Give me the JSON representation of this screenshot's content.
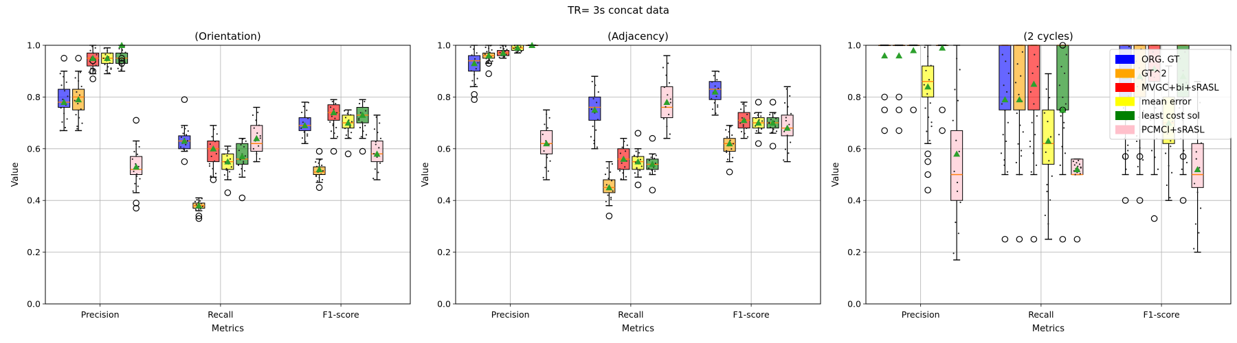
{
  "suptitle": "TR= 3s concat data",
  "legend": [
    {
      "label": "ORG. GT",
      "color": "#0000ff"
    },
    {
      "label": "GT^2",
      "color": "#ffa500"
    },
    {
      "label": "MVGC+bi+sRASL",
      "color": "#ff0000"
    },
    {
      "label": "mean error",
      "color": "#ffff00"
    },
    {
      "label": "least cost sol",
      "color": "#008000"
    },
    {
      "label": "PCMCI+sRASL",
      "color": "#ffc0cb"
    }
  ],
  "chart_data": [
    {
      "type": "box",
      "title": "(Orientation)",
      "xlabel": "Metrics",
      "ylabel": "Value",
      "categories": [
        "Precision",
        "Recall",
        "F1-score"
      ],
      "ylim": [
        0,
        1.0
      ],
      "yticks": [
        "0.0",
        "0.2",
        "0.4",
        "0.6",
        "0.8",
        "1.0"
      ],
      "grid": true,
      "series": [
        {
          "name": "ORG. GT",
          "boxes": [
            {
              "whislo": 0.67,
              "q1": 0.76,
              "med": 0.78,
              "q3": 0.83,
              "whishi": 0.9,
              "mean": 0.78,
              "fliers": [
                0.95
              ]
            },
            {
              "whislo": 0.59,
              "q1": 0.6,
              "med": 0.63,
              "q3": 0.65,
              "whishi": 0.69,
              "mean": 0.63,
              "fliers": [
                0.55,
                0.79
              ]
            },
            {
              "whislo": 0.62,
              "q1": 0.67,
              "med": 0.69,
              "q3": 0.72,
              "whishi": 0.78,
              "mean": 0.69,
              "fliers": []
            }
          ]
        },
        {
          "name": "GT^2",
          "boxes": [
            {
              "whislo": 0.67,
              "q1": 0.75,
              "med": 0.8,
              "q3": 0.83,
              "whishi": 0.9,
              "mean": 0.79,
              "fliers": [
                0.95
              ]
            },
            {
              "whislo": 0.36,
              "q1": 0.37,
              "med": 0.38,
              "q3": 0.39,
              "whishi": 0.41,
              "mean": 0.38,
              "fliers": [
                0.33,
                0.34
              ]
            },
            {
              "whislo": 0.47,
              "q1": 0.5,
              "med": 0.51,
              "q3": 0.53,
              "whishi": 0.56,
              "mean": 0.52,
              "fliers": [
                0.45,
                0.59
              ]
            }
          ]
        },
        {
          "name": "MVGC+bi+sRASL",
          "boxes": [
            {
              "whislo": 0.89,
              "q1": 0.92,
              "med": 0.95,
              "q3": 0.97,
              "whishi": 1.0,
              "mean": 0.95,
              "fliers": [
                0.87,
                0.9,
                0.94
              ]
            },
            {
              "whislo": 0.49,
              "q1": 0.55,
              "med": 0.6,
              "q3": 0.63,
              "whishi": 0.69,
              "mean": 0.6,
              "fliers": [
                0.48
              ]
            },
            {
              "whislo": 0.64,
              "q1": 0.71,
              "med": 0.74,
              "q3": 0.77,
              "whishi": 0.79,
              "mean": 0.74,
              "fliers": [
                0.59
              ]
            }
          ]
        },
        {
          "name": "mean error",
          "boxes": [
            {
              "whislo": 0.89,
              "q1": 0.93,
              "med": 0.95,
              "q3": 0.97,
              "whishi": 0.99,
              "mean": 0.95,
              "fliers": []
            },
            {
              "whislo": 0.48,
              "q1": 0.52,
              "med": 0.55,
              "q3": 0.58,
              "whishi": 0.61,
              "mean": 0.55,
              "fliers": [
                0.43
              ]
            },
            {
              "whislo": 0.64,
              "q1": 0.68,
              "med": 0.7,
              "q3": 0.73,
              "whishi": 0.75,
              "mean": 0.7,
              "fliers": [
                0.58
              ]
            }
          ]
        },
        {
          "name": "least cost sol",
          "boxes": [
            {
              "whislo": 0.9,
              "q1": 0.93,
              "med": 0.95,
              "q3": 0.97,
              "whishi": 1.0,
              "mean": 1.0,
              "fliers": [
                0.93,
                0.94,
                0.95
              ]
            },
            {
              "whislo": 0.49,
              "q1": 0.54,
              "med": 0.56,
              "q3": 0.62,
              "whishi": 0.64,
              "mean": 0.57,
              "fliers": [
                0.41
              ]
            },
            {
              "whislo": 0.64,
              "q1": 0.7,
              "med": 0.73,
              "q3": 0.76,
              "whishi": 0.79,
              "mean": 0.73,
              "fliers": [
                0.59
              ]
            }
          ]
        },
        {
          "name": "PCMCI+sRASL",
          "boxes": [
            {
              "whislo": 0.43,
              "q1": 0.5,
              "med": 0.52,
              "q3": 0.57,
              "whishi": 0.63,
              "mean": 0.53,
              "fliers": [
                0.37,
                0.39,
                0.71
              ]
            },
            {
              "whislo": 0.55,
              "q1": 0.59,
              "med": 0.62,
              "q3": 0.69,
              "whishi": 0.76,
              "mean": 0.64,
              "fliers": []
            },
            {
              "whislo": 0.48,
              "q1": 0.55,
              "med": 0.58,
              "q3": 0.63,
              "whishi": 0.73,
              "mean": 0.58,
              "fliers": []
            }
          ]
        }
      ]
    },
    {
      "type": "box",
      "title": "(Adjacency)",
      "xlabel": "Metrics",
      "ylabel": "Value",
      "categories": [
        "Precision",
        "Recall",
        "F1-score"
      ],
      "ylim": [
        0,
        1.0
      ],
      "yticks": [
        "0.0",
        "0.2",
        "0.4",
        "0.6",
        "0.8",
        "1.0"
      ],
      "grid": true,
      "series": [
        {
          "name": "ORG. GT",
          "boxes": [
            {
              "whislo": 0.84,
              "q1": 0.9,
              "med": 0.94,
              "q3": 0.96,
              "whishi": 1.0,
              "mean": 0.93,
              "fliers": [
                0.79,
                0.81
              ]
            },
            {
              "whislo": 0.6,
              "q1": 0.71,
              "med": 0.76,
              "q3": 0.8,
              "whishi": 0.88,
              "mean": 0.75,
              "fliers": []
            },
            {
              "whislo": 0.73,
              "q1": 0.79,
              "med": 0.83,
              "q3": 0.86,
              "whishi": 0.9,
              "mean": 0.82,
              "fliers": []
            }
          ]
        },
        {
          "name": "GT^2",
          "boxes": [
            {
              "whislo": 0.93,
              "q1": 0.95,
              "med": 0.96,
              "q3": 0.97,
              "whishi": 1.0,
              "mean": 0.96,
              "fliers": [
                0.89,
                0.93
              ]
            },
            {
              "whislo": 0.38,
              "q1": 0.43,
              "med": 0.45,
              "q3": 0.48,
              "whishi": 0.55,
              "mean": 0.45,
              "fliers": [
                0.34
              ]
            },
            {
              "whislo": 0.55,
              "q1": 0.59,
              "med": 0.62,
              "q3": 0.64,
              "whishi": 0.69,
              "mean": 0.62,
              "fliers": [
                0.51
              ]
            }
          ]
        },
        {
          "name": "MVGC+bi+sRASL",
          "boxes": [
            {
              "whislo": 0.95,
              "q1": 0.96,
              "med": 0.97,
              "q3": 0.98,
              "whishi": 1.0,
              "mean": 0.97,
              "fliers": []
            },
            {
              "whislo": 0.48,
              "q1": 0.52,
              "med": 0.56,
              "q3": 0.6,
              "whishi": 0.64,
              "mean": 0.56,
              "fliers": []
            },
            {
              "whislo": 0.64,
              "q1": 0.68,
              "med": 0.71,
              "q3": 0.74,
              "whishi": 0.78,
              "mean": 0.71,
              "fliers": []
            }
          ]
        },
        {
          "name": "mean error",
          "boxes": [
            {
              "whislo": 0.97,
              "q1": 0.98,
              "med": 0.99,
              "q3": 1.0,
              "whishi": 1.0,
              "mean": 0.99,
              "fliers": []
            },
            {
              "whislo": 0.49,
              "q1": 0.52,
              "med": 0.55,
              "q3": 0.57,
              "whishi": 0.6,
              "mean": 0.55,
              "fliers": [
                0.46,
                0.66
              ]
            },
            {
              "whislo": 0.66,
              "q1": 0.68,
              "med": 0.7,
              "q3": 0.72,
              "whishi": 0.74,
              "mean": 0.7,
              "fliers": [
                0.62,
                0.78
              ]
            }
          ]
        },
        {
          "name": "least cost sol",
          "boxes": [
            {
              "whislo": 1.0,
              "q1": 1.0,
              "med": 1.0,
              "q3": 1.0,
              "whishi": 1.0,
              "mean": 1.0,
              "fliers": []
            },
            {
              "whislo": 0.5,
              "q1": 0.52,
              "med": 0.54,
              "q3": 0.56,
              "whishi": 0.58,
              "mean": 0.54,
              "fliers": [
                0.44,
                0.64
              ]
            },
            {
              "whislo": 0.66,
              "q1": 0.68,
              "med": 0.7,
              "q3": 0.72,
              "whishi": 0.74,
              "mean": 0.7,
              "fliers": [
                0.61,
                0.78
              ]
            }
          ]
        },
        {
          "name": "PCMCI+sRASL",
          "boxes": [
            {
              "whislo": 0.48,
              "q1": 0.58,
              "med": 0.62,
              "q3": 0.67,
              "whishi": 0.75,
              "mean": 0.62,
              "fliers": []
            },
            {
              "whislo": 0.64,
              "q1": 0.72,
              "med": 0.76,
              "q3": 0.84,
              "whishi": 0.96,
              "mean": 0.78,
              "fliers": []
            },
            {
              "whislo": 0.55,
              "q1": 0.65,
              "med": 0.68,
              "q3": 0.73,
              "whishi": 0.84,
              "mean": 0.68,
              "fliers": []
            }
          ]
        }
      ]
    },
    {
      "type": "box",
      "title": "(2 cycles)",
      "xlabel": "Metrics",
      "ylabel": "Value",
      "categories": [
        "Precision",
        "Recall",
        "F1-score"
      ],
      "ylim": [
        0,
        1.0
      ],
      "yticks": [
        "0.0",
        "0.2",
        "0.4",
        "0.6",
        "0.8",
        "1.0"
      ],
      "grid": true,
      "series": [
        {
          "name": "ORG. GT",
          "boxes": [
            {
              "whislo": 1.0,
              "q1": 1.0,
              "med": 1.0,
              "q3": 1.0,
              "whishi": 1.0,
              "mean": 0.96,
              "fliers": [
                0.67,
                0.75,
                0.8
              ]
            },
            {
              "whislo": 0.5,
              "q1": 0.75,
              "med": 1.0,
              "q3": 1.0,
              "whishi": 1.0,
              "mean": 0.79,
              "fliers": [
                0.25
              ]
            },
            {
              "whislo": 0.5,
              "q1": 0.8,
              "med": 1.0,
              "q3": 1.0,
              "whishi": 1.0,
              "mean": 0.88,
              "fliers": [
                0.4,
                0.57
              ]
            }
          ]
        },
        {
          "name": "GT^2",
          "boxes": [
            {
              "whislo": 1.0,
              "q1": 1.0,
              "med": 1.0,
              "q3": 1.0,
              "whishi": 1.0,
              "mean": 0.96,
              "fliers": [
                0.67,
                0.75,
                0.8
              ]
            },
            {
              "whislo": 0.5,
              "q1": 0.75,
              "med": 1.0,
              "q3": 1.0,
              "whishi": 1.0,
              "mean": 0.79,
              "fliers": [
                0.25
              ]
            },
            {
              "whislo": 0.5,
              "q1": 0.8,
              "med": 1.0,
              "q3": 1.0,
              "whishi": 1.0,
              "mean": 0.88,
              "fliers": [
                0.4,
                0.57
              ]
            }
          ]
        },
        {
          "name": "MVGC+bi+sRASL",
          "boxes": [
            {
              "whislo": 1.0,
              "q1": 1.0,
              "med": 1.0,
              "q3": 1.0,
              "whishi": 1.0,
              "mean": 0.98,
              "fliers": [
                0.75
              ]
            },
            {
              "whislo": 0.5,
              "q1": 0.75,
              "med": 1.0,
              "q3": 1.0,
              "whishi": 1.0,
              "mean": 0.85,
              "fliers": [
                0.25
              ]
            },
            {
              "whislo": 0.5,
              "q1": 0.86,
              "med": 1.0,
              "q3": 1.0,
              "whishi": 1.0,
              "mean": 0.91,
              "fliers": [
                0.33
              ]
            }
          ]
        },
        {
          "name": "mean error",
          "boxes": [
            {
              "whislo": 0.62,
              "q1": 0.8,
              "med": 0.86,
              "q3": 0.92,
              "whishi": 1.0,
              "mean": 0.84,
              "fliers": [
                0.44,
                0.5,
                0.55,
                0.58
              ]
            },
            {
              "whislo": 0.25,
              "q1": 0.54,
              "med": 0.62,
              "q3": 0.75,
              "whishi": 0.89,
              "mean": 0.63,
              "fliers": []
            },
            {
              "whislo": 0.4,
              "q1": 0.62,
              "med": 0.7,
              "q3": 0.8,
              "whishi": 0.92,
              "mean": 0.7,
              "fliers": []
            }
          ]
        },
        {
          "name": "least cost sol",
          "boxes": [
            {
              "whislo": 1.0,
              "q1": 1.0,
              "med": 1.0,
              "q3": 1.0,
              "whishi": 1.0,
              "mean": 0.99,
              "fliers": [
                0.67,
                0.75
              ]
            },
            {
              "whislo": 0.5,
              "q1": 0.75,
              "med": 1.0,
              "q3": 1.0,
              "whishi": 1.0,
              "mean": 0.75,
              "fliers": [
                0.25,
                0.75,
                1.0
              ]
            },
            {
              "whislo": 0.5,
              "q1": 0.8,
              "med": 1.0,
              "q3": 1.0,
              "whishi": 1.0,
              "mean": 0.88,
              "fliers": [
                0.4,
                0.57
              ]
            }
          ]
        },
        {
          "name": "PCMCI+sRASL",
          "boxes": [
            {
              "whislo": 0.17,
              "q1": 0.4,
              "med": 0.5,
              "q3": 0.67,
              "whishi": 1.0,
              "mean": 0.58,
              "fliers": []
            },
            {
              "whislo": 0.5,
              "q1": 0.5,
              "med": 0.5,
              "q3": 0.56,
              "whishi": 0.56,
              "mean": 0.52,
              "fliers": [
                0.25
              ]
            },
            {
              "whislo": 0.2,
              "q1": 0.45,
              "med": 0.5,
              "q3": 0.62,
              "whishi": 0.86,
              "mean": 0.52,
              "fliers": []
            }
          ]
        }
      ]
    }
  ]
}
